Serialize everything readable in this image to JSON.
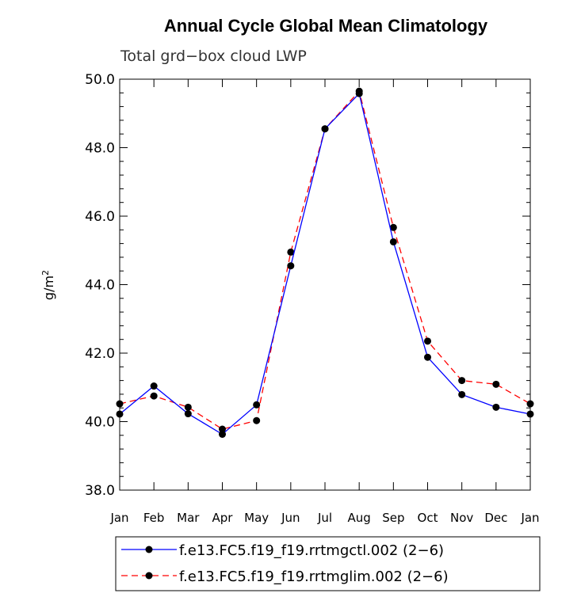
{
  "chart_data": {
    "type": "line",
    "title": "Annual Cycle Global Mean Climatology",
    "subtitle": "Total grd−box cloud LWP",
    "ylabel_base": "g/m",
    "ylabel_sup": "2",
    "xlabel": "",
    "categories": [
      "Jan",
      "Feb",
      "Mar",
      "Apr",
      "May",
      "Jun",
      "Jul",
      "Aug",
      "Sep",
      "Oct",
      "Nov",
      "Dec",
      "Jan"
    ],
    "ylim": [
      38.0,
      50.0
    ],
    "yticks": [
      38.0,
      40.0,
      42.0,
      44.0,
      46.0,
      48.0,
      50.0
    ],
    "ytick_labels": [
      "38.0",
      "40.0",
      "42.0",
      "44.0",
      "46.0",
      "48.0",
      "50.0"
    ],
    "grid": false,
    "legend_position": "bottom",
    "series": [
      {
        "name": "f.e13.FC5.f19_f19.rrtmgctl.002 (2−6)",
        "color": "#0000ff",
        "dash": "solid",
        "values": [
          40.22,
          41.04,
          40.23,
          39.63,
          40.49,
          44.55,
          48.55,
          49.58,
          45.25,
          41.88,
          40.79,
          40.42,
          40.22
        ]
      },
      {
        "name": "f.e13.FC5.f19_f19.rrtmglim.002 (2−6)",
        "color": "#ff0000",
        "dash": "dashed",
        "values": [
          40.52,
          40.75,
          40.42,
          39.78,
          40.03,
          44.95,
          48.55,
          49.65,
          45.67,
          42.35,
          41.2,
          41.09,
          40.52
        ]
      }
    ]
  }
}
